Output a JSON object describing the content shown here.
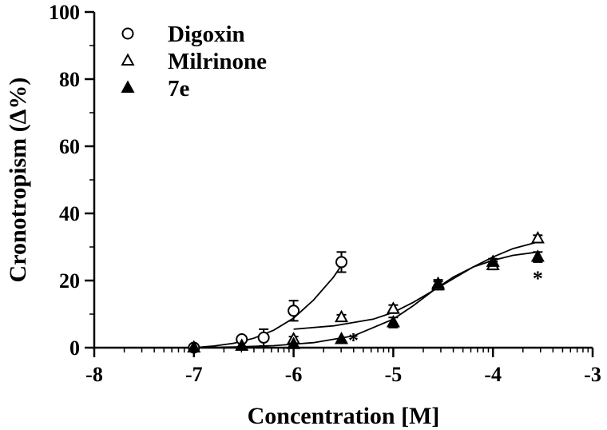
{
  "chart_data": {
    "type": "scatter",
    "xlabel": "Concentration [M]",
    "ylabel": "Cronotropism (Δ%)",
    "xlim": [
      -8,
      -3
    ],
    "ylim": [
      0,
      100
    ],
    "xticks": [
      "-8",
      "-7",
      "-6",
      "-5",
      "-4",
      "-3"
    ],
    "yticks": [
      "0",
      "20",
      "40",
      "60",
      "80",
      "100"
    ],
    "grid": false,
    "legend_position": "top-left",
    "series": [
      {
        "name": "Digoxin",
        "marker": "open-circle",
        "x": [
          -7.0,
          -6.52,
          -6.3,
          -6.0,
          -5.52
        ],
        "y": [
          0,
          2.5,
          3,
          11,
          25.5
        ],
        "err": [
          0.8,
          0.6,
          2.5,
          3,
          3
        ],
        "fit": {
          "x": [
            -7.0,
            -6.8,
            -6.6,
            -6.4,
            -6.2,
            -6.0,
            -5.8,
            -5.6,
            -5.52
          ],
          "y": [
            0,
            0.5,
            1.3,
            2.8,
            5.2,
            8.8,
            14.2,
            21.0,
            24.5
          ]
        }
      },
      {
        "name": "Milrinone",
        "marker": "open-triangle",
        "x": [
          -6.0,
          -5.52,
          -5.0,
          -4.55,
          -4.0,
          -3.55
        ],
        "y": [
          2.5,
          9,
          11.5,
          18.5,
          24.5,
          32.5
        ],
        "err": [
          0.8,
          0.8,
          1.2,
          1.2,
          1.2,
          1.0
        ],
        "fit": {
          "x": [
            -6.0,
            -5.6,
            -5.2,
            -5.0,
            -4.8,
            -4.6,
            -4.4,
            -4.2,
            -4.0,
            -3.8,
            -3.55
          ],
          "y": [
            5.5,
            6.5,
            8.5,
            10.5,
            13.5,
            17.0,
            20.5,
            24.0,
            27.0,
            29.5,
            31.5
          ]
        }
      },
      {
        "name": "7e",
        "marker": "filled-triangle",
        "x": [
          -7.0,
          -6.52,
          -6.0,
          -5.52,
          -5.0,
          -4.55,
          -4.0,
          -3.55
        ],
        "y": [
          0,
          0.5,
          1,
          2.5,
          7.5,
          19,
          25.5,
          27
        ],
        "err": [
          0.5,
          0.5,
          0.5,
          0.5,
          1.5,
          1.2,
          1.0,
          1.5
        ],
        "fit": {
          "x": [
            -7.0,
            -6.6,
            -6.2,
            -5.8,
            -5.4,
            -5.0,
            -4.8,
            -4.6,
            -4.4,
            -4.2,
            -4.0,
            -3.8,
            -3.55
          ],
          "y": [
            0,
            0.2,
            0.6,
            1.5,
            3.5,
            8.5,
            12.5,
            17.0,
            21.0,
            24.0,
            26.0,
            27.5,
            28.5
          ]
        }
      }
    ],
    "annotations": [
      {
        "text": "*",
        "x": -5.4,
        "y": 2.5
      },
      {
        "text": "*",
        "x": -3.55,
        "y": 21
      }
    ]
  }
}
